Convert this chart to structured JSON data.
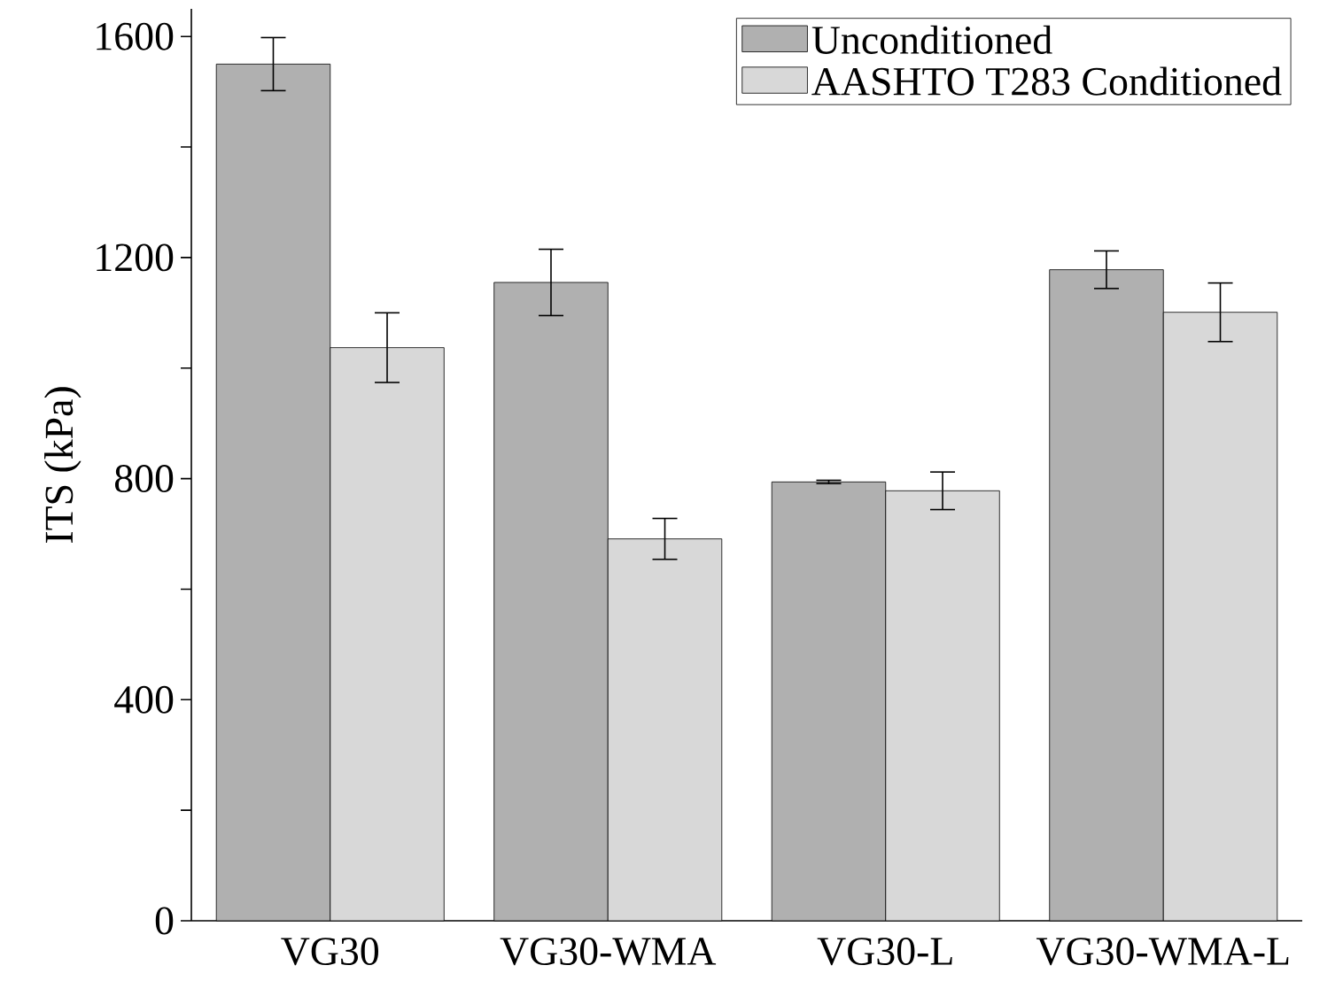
{
  "chart_data": {
    "type": "bar",
    "ylabel": "ITS (kPa)",
    "categories": [
      "VG30",
      "VG30-WMA",
      "VG30-L",
      "VG30-WMA-L"
    ],
    "series": [
      {
        "name": "Unconditioned",
        "color": "#b0b0b0",
        "values": [
          1550,
          1155,
          794,
          1178
        ],
        "errors": [
          48,
          60,
          3,
          34
        ]
      },
      {
        "name": "AASHTO T283 Conditioned",
        "color": "#d8d8d8",
        "values": [
          1037,
          691,
          778,
          1101
        ],
        "errors": [
          63,
          37,
          34,
          53
        ]
      }
    ],
    "ylim": [
      0,
      1650
    ],
    "yticks": [
      0,
      {
        "value": 200,
        "label": null
      },
      400,
      {
        "value": 600,
        "label": null
      },
      800,
      {
        "value": 1000,
        "label": null
      },
      1200,
      {
        "value": 1400,
        "label": null
      },
      1600
    ],
    "grid": false,
    "legend": "top right"
  }
}
